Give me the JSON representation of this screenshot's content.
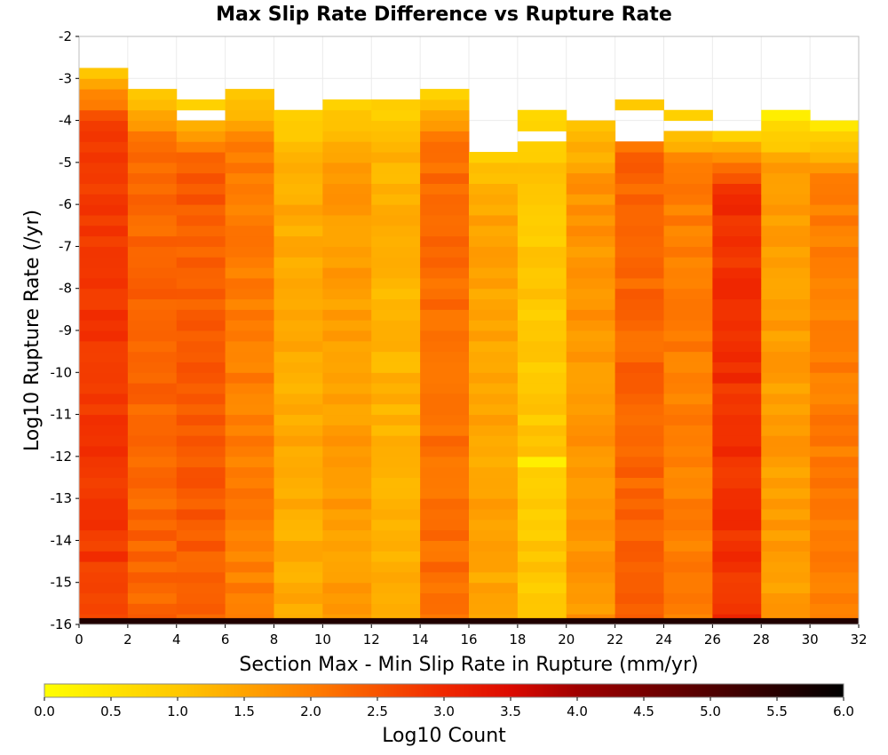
{
  "chart_data": {
    "type": "heatmap",
    "title": "Max Slip Rate Difference vs Rupture Rate",
    "xlabel": "Section Max - Min Slip Rate in Rupture (mm/yr)",
    "ylabel": "Log10 Rupture Rate (/yr)",
    "colorbar_label": "Log10 Count",
    "xlim": [
      0,
      32
    ],
    "ylim": [
      -16,
      -2
    ],
    "x_ticks": [
      "0",
      "2",
      "4",
      "6",
      "8",
      "10",
      "12",
      "14",
      "16",
      "18",
      "20",
      "22",
      "24",
      "26",
      "28",
      "30",
      "32"
    ],
    "y_ticks": [
      "-2",
      "-3",
      "-4",
      "-5",
      "-6",
      "-7",
      "-8",
      "-9",
      "-10",
      "-11",
      "-12",
      "-13",
      "-14",
      "-15",
      "-16"
    ],
    "colorbar_ticks": [
      "0.0",
      "0.5",
      "1.0",
      "1.5",
      "2.0",
      "2.5",
      "3.0",
      "3.5",
      "4.0",
      "4.5",
      "5.0",
      "5.5",
      "6.0"
    ],
    "colorbar_range": [
      0,
      6
    ],
    "grid": true,
    "bin_size": {
      "x": 2,
      "y": 0.25
    },
    "columns": [
      {
        "x": [
          0,
          2
        ],
        "y_top": -2.75,
        "value": 2.8,
        "top_value": 1.2
      },
      {
        "x": [
          2,
          4
        ],
        "y_top": -3.25,
        "value": 2.3,
        "top_value": 1.1
      },
      {
        "x": [
          4,
          6
        ],
        "y_top": -3.5,
        "value": 2.4,
        "top_value": 0.7
      },
      {
        "x": [
          6,
          8
        ],
        "y_top": -3.25,
        "value": 2.0,
        "top_value": 1.0
      },
      {
        "x": [
          8,
          10
        ],
        "y_top": -3.75,
        "value": 1.4,
        "top_value": 0.8
      },
      {
        "x": [
          10,
          12
        ],
        "y_top": -3.5,
        "value": 1.6,
        "top_value": 0.8
      },
      {
        "x": [
          12,
          14
        ],
        "y_top": -3.5,
        "value": 1.3,
        "top_value": 0.8
      },
      {
        "x": [
          14,
          16
        ],
        "y_top": -3.25,
        "value": 2.2,
        "top_value": 0.9
      },
      {
        "x": [
          16,
          18
        ],
        "y_top": -4.75,
        "value": 1.5,
        "top_value": 0.9
      },
      {
        "x": [
          18,
          20
        ],
        "y_top": -3.5,
        "value": 1.0,
        "top_value": 0.8
      },
      {
        "x": [
          20,
          22
        ],
        "y_top": -4.0,
        "value": 1.7,
        "top_value": 1.0
      },
      {
        "x": [
          22,
          24
        ],
        "y_top": -3.5,
        "value": 2.3,
        "top_value": 0.8
      },
      {
        "x": [
          24,
          26
        ],
        "y_top": -3.75,
        "value": 2.0,
        "top_value": 0.7
      },
      {
        "x": [
          26,
          28
        ],
        "y_top": -4.25,
        "value": 2.9,
        "top_value": 0.8
      },
      {
        "x": [
          28,
          30
        ],
        "y_top": -3.75,
        "value": 1.6,
        "top_value": 0.3
      },
      {
        "x": [
          30,
          32
        ],
        "y_top": -4.0,
        "value": 2.0,
        "top_value": 0.4
      }
    ],
    "gaps": [
      {
        "x": [
          4,
          6
        ],
        "y": [
          -4.0,
          -3.75
        ]
      },
      {
        "x": [
          18,
          20
        ],
        "y": [
          -3.75,
          -3.5
        ]
      },
      {
        "x": [
          18,
          20
        ],
        "y": [
          -4.5,
          -4.25
        ]
      },
      {
        "x": [
          22,
          24
        ],
        "y": [
          -4.5,
          -3.75
        ]
      },
      {
        "x": [
          24,
          26
        ],
        "y": [
          -4.25,
          -4.0
        ]
      }
    ],
    "bottom_row": {
      "y": [
        -16,
        -15.85
      ],
      "value": 5.6
    },
    "hot_spots": [
      {
        "x": [
          18,
          20
        ],
        "y": [
          -12.25,
          -12.0
        ],
        "value": 0.3
      }
    ]
  }
}
